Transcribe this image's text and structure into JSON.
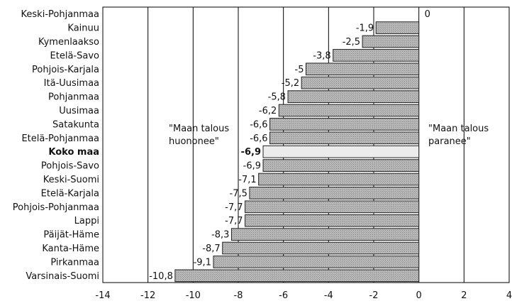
{
  "chart_data": {
    "type": "bar",
    "orientation": "horizontal",
    "categories": [
      "Keski-Pohjanmaa",
      "Kainuu",
      "Kymenlaakso",
      "Etelä-Savo",
      "Pohjois-Karjala",
      "Itä-Uusimaa",
      "Pohjanmaa",
      "Uusimaa",
      "Satakunta",
      "Etelä-Pohjanmaa",
      "Koko maa",
      "Pohjois-Savo",
      "Keski-Suomi",
      "Etelä-Karjala",
      "Pohjois-Pohjanmaa",
      "Lappi",
      "Päijät-Häme",
      "Kanta-Häme",
      "Pirkanmaa",
      "Varsinais-Suomi"
    ],
    "values": [
      0,
      -1.9,
      -2.5,
      -3.8,
      -5,
      -5.2,
      -5.8,
      -6.2,
      -6.6,
      -6.6,
      -6.9,
      -6.9,
      -7.1,
      -7.5,
      -7.7,
      -7.7,
      -8.3,
      -8.7,
      -9.1,
      -10.8
    ],
    "value_labels": [
      "0",
      "-1,9",
      "-2,5",
      "-3,8",
      "-5",
      "-5,2",
      "-5,8",
      "-6,2",
      "-6,6",
      "-6,6",
      "-6,9",
      "-6,9",
      "-7,1",
      "-7,5",
      "-7,7",
      "-7,7",
      "-8,3",
      "-8,7",
      "-9,1",
      "-10,8"
    ],
    "highlight_category": "Koko maa",
    "xlim": [
      -14,
      4
    ],
    "xticks": [
      -14,
      -12,
      -10,
      -8,
      -6,
      -4,
      -2,
      0,
      2,
      4
    ],
    "grid": "vertical",
    "annotations": {
      "left_line1": "\"Maan talous",
      "left_line2": "huononee\"",
      "right_line1": "\"Maan talous",
      "right_line2": "paranee\""
    },
    "colors": {
      "bar": "#b8b8b8",
      "highlight_bar": "#ececec",
      "bar_edge": "#222222",
      "grid": "#000000"
    }
  }
}
